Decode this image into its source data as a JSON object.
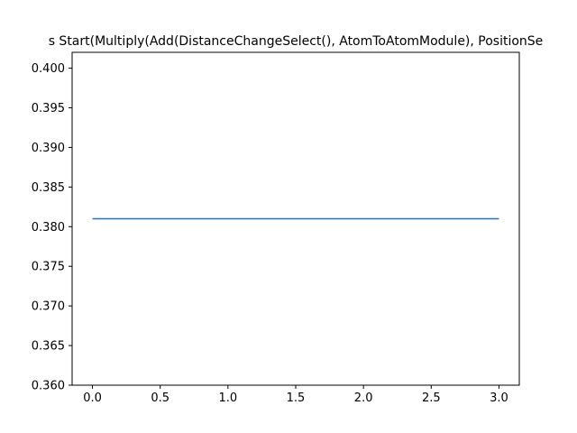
{
  "chart_data": {
    "type": "line",
    "title": "s Start(Multiply(Add(DistanceChangeSelect(), AtomToAtomModule), PositionSe",
    "xlabel": "",
    "ylabel": "",
    "xlim": [
      -0.15,
      3.15
    ],
    "ylim": [
      0.36,
      0.402
    ],
    "xticks": [
      0.0,
      0.5,
      1.0,
      1.5,
      2.0,
      2.5,
      3.0
    ],
    "xtick_labels": [
      "0.0",
      "0.5",
      "1.0",
      "1.5",
      "2.0",
      "2.5",
      "3.0"
    ],
    "yticks": [
      0.36,
      0.365,
      0.37,
      0.375,
      0.38,
      0.385,
      0.39,
      0.395,
      0.4
    ],
    "ytick_labels": [
      "0.360",
      "0.365",
      "0.370",
      "0.375",
      "0.380",
      "0.385",
      "0.390",
      "0.395",
      "0.400"
    ],
    "grid": false,
    "series": [
      {
        "x": [
          0,
          1,
          2,
          3
        ],
        "y": [
          0.381,
          0.381,
          0.381,
          0.381
        ],
        "color": "#1f77b4"
      }
    ]
  }
}
